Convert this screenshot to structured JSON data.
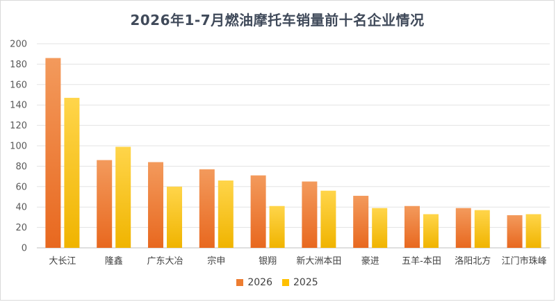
{
  "chart_data": {
    "type": "bar",
    "title": "2026年1-7月燃油摩托车销量前十名企业情况",
    "categories": [
      "大长江",
      "隆鑫",
      "广东大冶",
      "宗申",
      "银翔",
      "新大洲本田",
      "豪进",
      "五羊-本田",
      "洛阳北方",
      "江门市珠峰"
    ],
    "series": [
      {
        "name": "2026",
        "values": [
          186,
          86,
          84,
          77,
          71,
          65,
          51,
          41,
          39,
          32
        ],
        "color": "#ed7d31"
      },
      {
        "name": "2025",
        "values": [
          147,
          99,
          60,
          66,
          41,
          56,
          39,
          33,
          37,
          33
        ],
        "color": "#ffc000"
      }
    ],
    "yticks": [
      "0",
      "20",
      "40",
      "60",
      "80",
      "100",
      "120",
      "140",
      "160",
      "180",
      "200"
    ],
    "ylim": [
      0,
      200
    ],
    "xlabel": "",
    "ylabel": "",
    "grid": true,
    "legend_position": "bottom"
  }
}
